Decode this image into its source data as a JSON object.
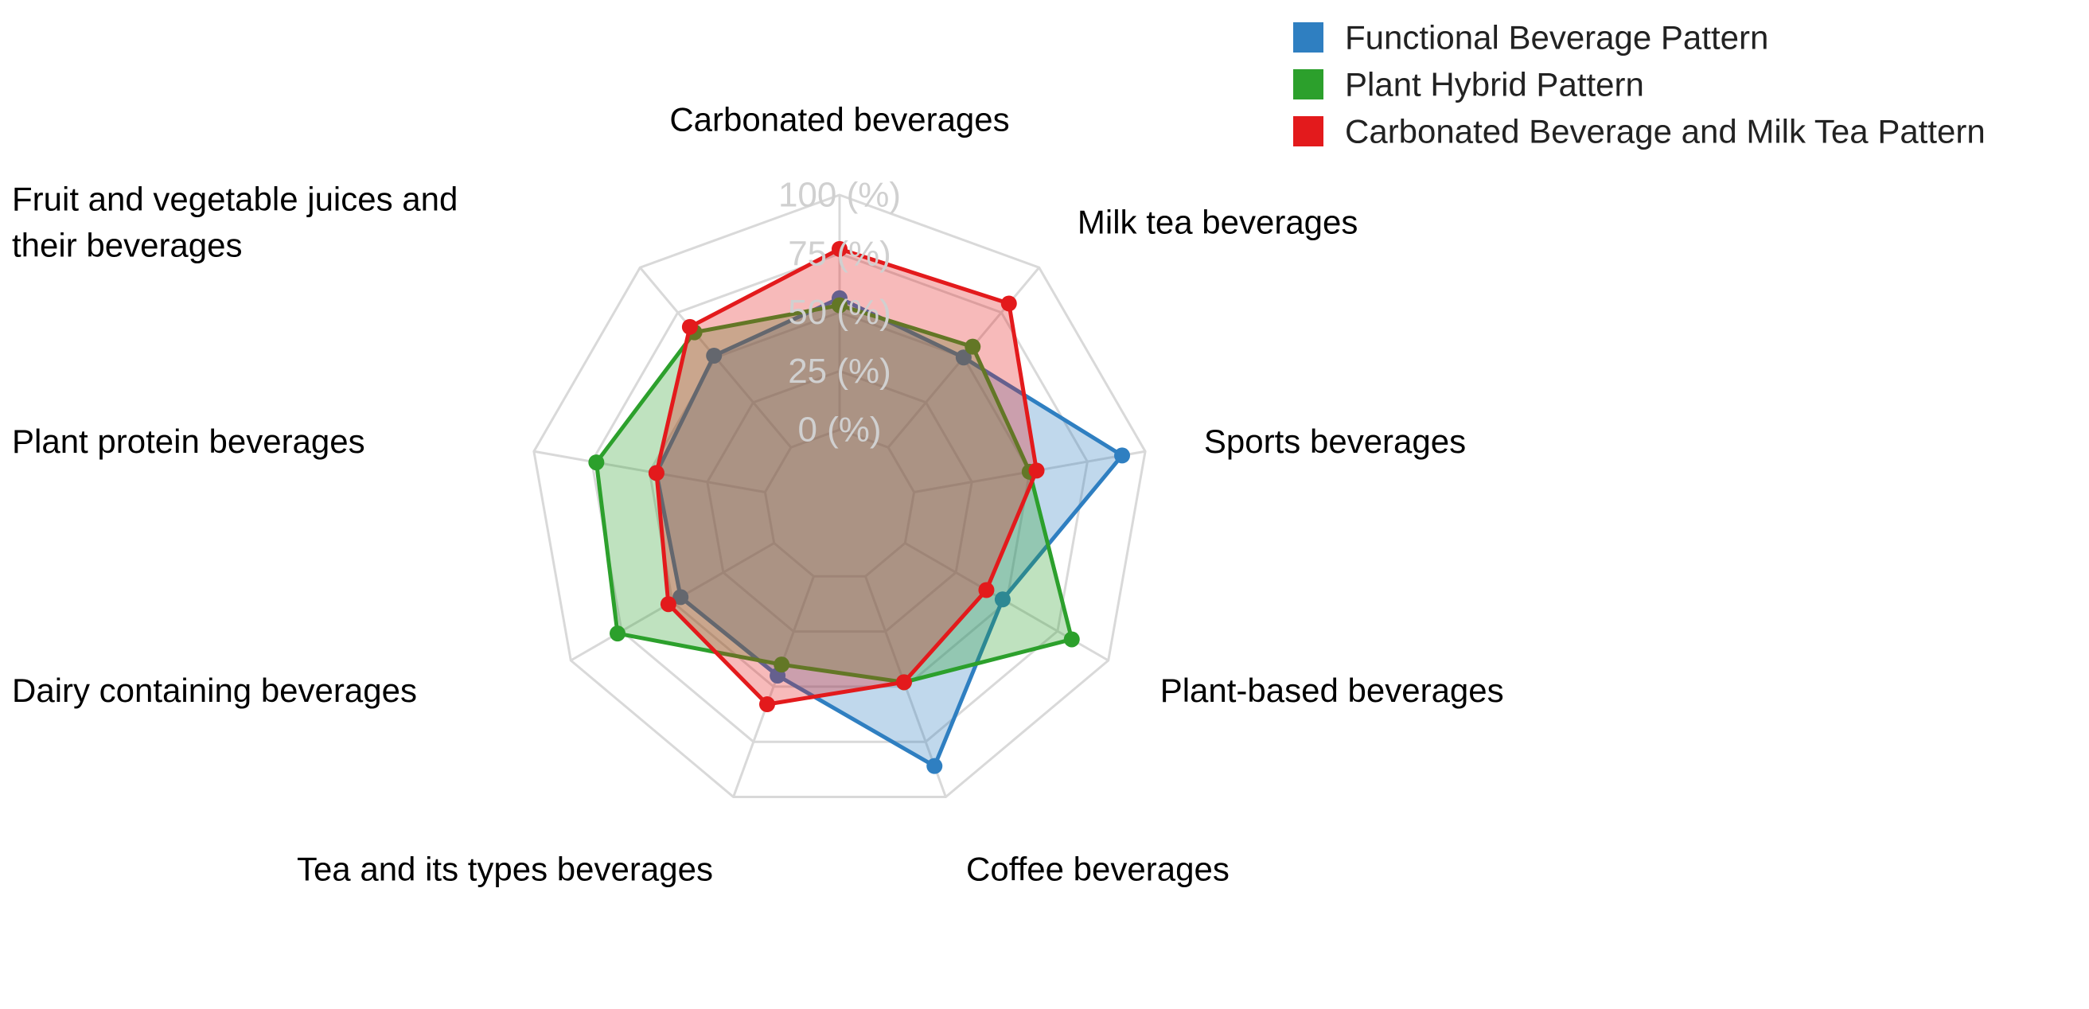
{
  "chart_data": {
    "type": "radar",
    "title": "",
    "rmin": 0,
    "rmax": 100,
    "unit": "(%)",
    "ticks": [
      0,
      25,
      50,
      75,
      100
    ],
    "tick_labels": [
      "0 (%)",
      "25 (%)",
      "50 (%)",
      "75 (%)",
      "100 (%)"
    ],
    "categories": [
      [
        "Carbonated beverages"
      ],
      [
        "Milk tea beverages"
      ],
      [
        "Sports beverages"
      ],
      [
        "Plant-based beverages"
      ],
      [
        "Coffee beverages"
      ],
      [
        "Tea and its types beverages"
      ],
      [
        "Dairy containing beverages"
      ],
      [
        "Plant protein beverages"
      ],
      [
        "Fruit and vegetable juices and",
        "their beverages"
      ]
    ],
    "legend_position": "top-right",
    "series": [
      {
        "name": "Functional Beverage Pattern",
        "color": "#2f7fc1",
        "values": [
          56,
          50,
          90,
          48,
          86,
          45,
          46,
          47,
          51
        ]
      },
      {
        "name": "Plant Hybrid Pattern",
        "color": "#2ca02c",
        "values": [
          53,
          56,
          50,
          82,
          48,
          40,
          77,
          73,
          64
        ]
      },
      {
        "name": "Carbonated Beverage and Milk Tea Pattern",
        "color": "#e31a1c",
        "values": [
          77,
          80,
          53,
          40,
          48,
          58,
          52,
          47,
          67
        ]
      }
    ]
  }
}
